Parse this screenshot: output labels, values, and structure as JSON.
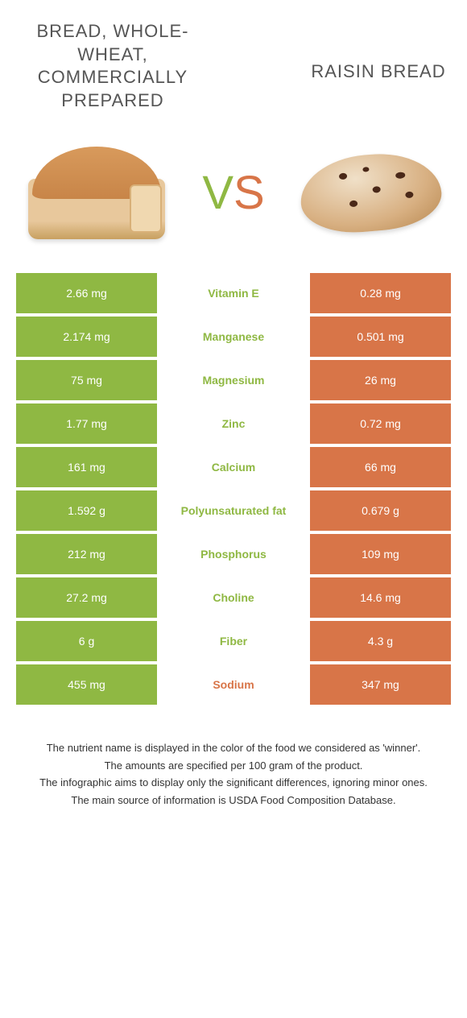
{
  "titles": {
    "left": "Bread, whole-wheat, commercially prepared",
    "right": "Raisin Bread"
  },
  "vs": {
    "v": "V",
    "s": "S"
  },
  "colors": {
    "left": "#8fb843",
    "right": "#d87548",
    "left_text": "#8fb843",
    "right_text": "#d87548"
  },
  "rows": [
    {
      "left": "2.66 mg",
      "name": "Vitamin E",
      "right": "0.28 mg",
      "winner": "left"
    },
    {
      "left": "2.174 mg",
      "name": "Manganese",
      "right": "0.501 mg",
      "winner": "left"
    },
    {
      "left": "75 mg",
      "name": "Magnesium",
      "right": "26 mg",
      "winner": "left"
    },
    {
      "left": "1.77 mg",
      "name": "Zinc",
      "right": "0.72 mg",
      "winner": "left"
    },
    {
      "left": "161 mg",
      "name": "Calcium",
      "right": "66 mg",
      "winner": "left"
    },
    {
      "left": "1.592 g",
      "name": "Polyunsaturated fat",
      "right": "0.679 g",
      "winner": "left"
    },
    {
      "left": "212 mg",
      "name": "Phosphorus",
      "right": "109 mg",
      "winner": "left"
    },
    {
      "left": "27.2 mg",
      "name": "Choline",
      "right": "14.6 mg",
      "winner": "left"
    },
    {
      "left": "6 g",
      "name": "Fiber",
      "right": "4.3 g",
      "winner": "left"
    },
    {
      "left": "455 mg",
      "name": "Sodium",
      "right": "347 mg",
      "winner": "right"
    }
  ],
  "footer": {
    "l1": "The nutrient name is displayed in the color of the food we considered as 'winner'.",
    "l2": "The amounts are specified per 100 gram of the product.",
    "l3": "The infographic aims to display only the significant differences, ignoring minor ones.",
    "l4": "The main source of information is USDA Food Composition Database."
  }
}
